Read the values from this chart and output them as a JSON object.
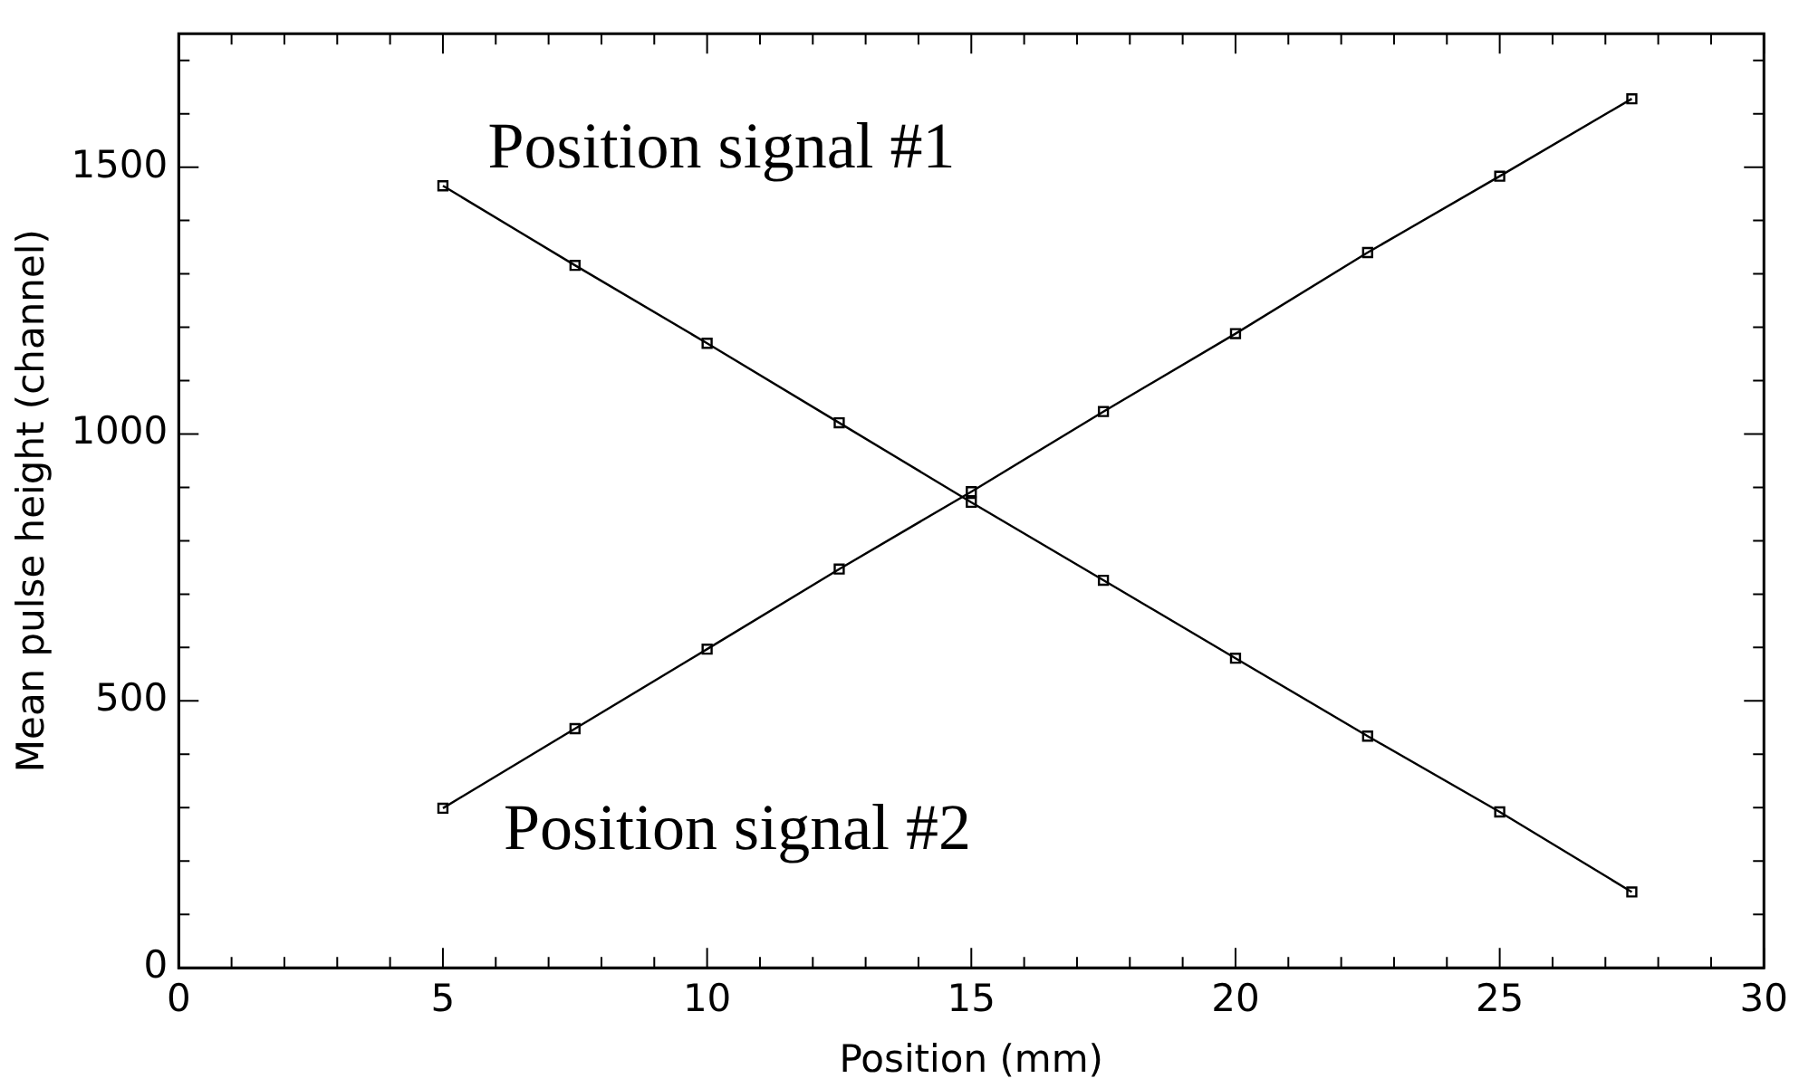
{
  "chart_data": {
    "type": "line",
    "xlabel": "Position (mm)",
    "ylabel": "Mean pulse height (channel)",
    "x": [
      5,
      7.5,
      10,
      12.5,
      15,
      17.5,
      20,
      22.5,
      25,
      27.5
    ],
    "series": [
      {
        "color": "#000000",
        "values": [
          1465,
          1316,
          1170,
          1021,
          872,
          726,
          580,
          434,
          292,
          142
        ]
      },
      {
        "color": "#000000",
        "values": [
          299,
          448,
          597,
          747,
          892,
          1042,
          1188,
          1340,
          1483,
          1628
        ]
      }
    ],
    "xlim": [
      0,
      30
    ],
    "ylim": [
      0,
      1750
    ],
    "xticks": [
      0,
      {
        "value": 1,
        "label": null
      },
      {
        "value": 2,
        "label": null
      },
      {
        "value": 3,
        "label": null
      },
      {
        "value": 4,
        "label": null
      },
      5,
      {
        "value": 6,
        "label": null
      },
      {
        "value": 7,
        "label": null
      },
      {
        "value": 8,
        "label": null
      },
      {
        "value": 9,
        "label": null
      },
      10,
      {
        "value": 11,
        "label": null
      },
      {
        "value": 12,
        "label": null
      },
      {
        "value": 13,
        "label": null
      },
      {
        "value": 14,
        "label": null
      },
      15,
      {
        "value": 16,
        "label": null
      },
      {
        "value": 17,
        "label": null
      },
      {
        "value": 18,
        "label": null
      },
      {
        "value": 19,
        "label": null
      },
      20,
      {
        "value": 21,
        "label": null
      },
      {
        "value": 22,
        "label": null
      },
      {
        "value": 23,
        "label": null
      },
      {
        "value": 24,
        "label": null
      },
      25,
      {
        "value": 26,
        "label": null
      },
      {
        "value": 27,
        "label": null
      },
      {
        "value": 28,
        "label": null
      },
      {
        "value": 29,
        "label": null
      },
      30
    ],
    "yticks": [
      0,
      {
        "value": 100,
        "label": null
      },
      {
        "value": 200,
        "label": null
      },
      {
        "value": 300,
        "label": null
      },
      {
        "value": 400,
        "label": null
      },
      500,
      {
        "value": 600,
        "label": null
      },
      {
        "value": 700,
        "label": null
      },
      {
        "value": 800,
        "label": null
      },
      {
        "value": 900,
        "label": null
      },
      1000,
      {
        "value": 1100,
        "label": null
      },
      {
        "value": 1200,
        "label": null
      },
      {
        "value": 1300,
        "label": null
      },
      {
        "value": 1400,
        "label": null
      },
      1500,
      {
        "value": 1600,
        "label": null
      },
      {
        "value": 1700,
        "label": null
      }
    ],
    "annotations": [
      "Position signal #1",
      "Position signal #2"
    ],
    "grid": false,
    "legend": false,
    "marker": "square",
    "line_style": "solid"
  }
}
